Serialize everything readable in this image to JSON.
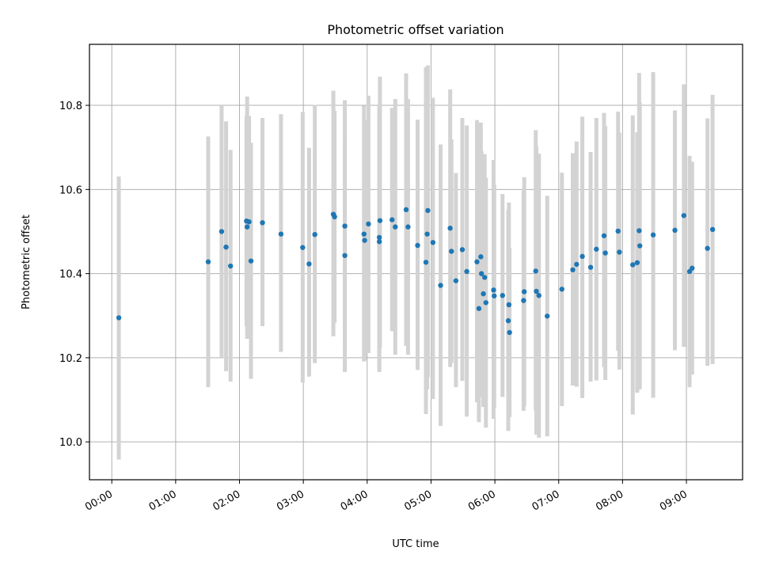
{
  "chart_data": {
    "type": "scatter",
    "title": "Photometric offset variation",
    "xlabel": "UTC time",
    "ylabel": "Photometric offset",
    "x_unit": "hours UTC",
    "xlim": [
      -0.35,
      9.88
    ],
    "ylim": [
      9.91,
      10.945
    ],
    "x_ticks": [
      0,
      1,
      2,
      3,
      4,
      5,
      6,
      7,
      8,
      9
    ],
    "x_tick_labels": [
      "00:00",
      "01:00",
      "02:00",
      "03:00",
      "04:00",
      "05:00",
      "06:00",
      "07:00",
      "08:00",
      "09:00"
    ],
    "y_ticks": [
      10.0,
      10.2,
      10.4,
      10.6,
      10.8
    ],
    "y_tick_labels": [
      "10.0",
      "10.2",
      "10.4",
      "10.6",
      "10.8"
    ],
    "grid": true,
    "errorbar_color": "#d3d3d3",
    "point_color": "#1f77b4",
    "series": [
      {
        "x": [
          0.11,
          1.51,
          1.72,
          1.79,
          1.86,
          2.11,
          2.12,
          2.15,
          2.18,
          2.36,
          2.65,
          2.99,
          3.09,
          3.18,
          3.47,
          3.49,
          3.65,
          3.65,
          3.95,
          3.96,
          4.02,
          4.19,
          4.19,
          4.2,
          4.39,
          4.44,
          4.61,
          4.64,
          4.79,
          4.92,
          4.94,
          4.95,
          5.03,
          5.15,
          5.3,
          5.32,
          5.39,
          5.49,
          5.56,
          5.72,
          5.75,
          5.78,
          5.79,
          5.82,
          5.84,
          5.86,
          5.98,
          5.99,
          6.12,
          6.21,
          6.22,
          6.23,
          6.45,
          6.46,
          6.64,
          6.65,
          6.69,
          6.82,
          7.05,
          7.22,
          7.28,
          7.37,
          7.5,
          7.59,
          7.71,
          7.73,
          7.93,
          7.95,
          8.16,
          8.23,
          8.26,
          8.27,
          8.48,
          8.82,
          8.96,
          9.05,
          9.09,
          9.33,
          9.41
        ],
        "y": [
          10.295,
          10.428,
          10.5,
          10.463,
          10.418,
          10.525,
          10.511,
          10.523,
          10.43,
          10.521,
          10.494,
          10.462,
          10.423,
          10.493,
          10.541,
          10.535,
          10.443,
          10.513,
          10.494,
          10.479,
          10.518,
          10.476,
          10.486,
          10.526,
          10.528,
          10.511,
          10.552,
          10.511,
          10.467,
          10.427,
          10.494,
          10.55,
          10.474,
          10.372,
          10.508,
          10.453,
          10.383,
          10.457,
          10.405,
          10.428,
          10.317,
          10.44,
          10.4,
          10.352,
          10.391,
          10.331,
          10.361,
          10.347,
          10.348,
          10.288,
          10.326,
          10.26,
          10.336,
          10.357,
          10.406,
          10.358,
          10.348,
          10.299,
          10.363,
          10.409,
          10.422,
          10.441,
          10.415,
          10.458,
          10.49,
          10.449,
          10.501,
          10.451,
          10.421,
          10.426,
          10.502,
          10.466,
          10.492,
          10.503,
          10.538,
          10.405,
          10.413,
          10.46,
          10.505
        ],
        "err_low": [
          9.958,
          10.13,
          10.202,
          10.168,
          10.143,
          10.275,
          10.245,
          10.28,
          10.15,
          10.275,
          10.214,
          10.141,
          10.155,
          10.187,
          10.251,
          10.283,
          10.166,
          10.222,
          10.191,
          10.194,
          10.211,
          10.166,
          10.176,
          10.224,
          10.263,
          10.207,
          10.228,
          10.207,
          10.171,
          10.066,
          10.125,
          10.154,
          10.102,
          10.038,
          10.178,
          10.188,
          10.13,
          10.145,
          10.06,
          10.094,
          10.047,
          10.12,
          10.107,
          10.083,
          10.097,
          10.034,
          10.055,
          10.082,
          10.107,
          10.026,
          10.085,
          10.059,
          10.074,
          10.085,
          10.074,
          10.017,
          10.01,
          10.013,
          10.085,
          10.134,
          10.131,
          10.104,
          10.143,
          10.146,
          10.178,
          10.147,
          10.217,
          10.172,
          10.065,
          10.117,
          10.126,
          10.125,
          10.105,
          10.218,
          10.226,
          10.13,
          10.16,
          10.181,
          10.185
        ],
        "err_high": [
          10.631,
          10.726,
          10.8,
          10.762,
          10.694,
          10.775,
          10.821,
          10.775,
          10.711,
          10.77,
          10.779,
          10.784,
          10.699,
          10.801,
          10.835,
          10.787,
          10.719,
          10.812,
          10.799,
          10.766,
          10.823,
          10.778,
          10.798,
          10.868,
          10.794,
          10.815,
          10.876,
          10.815,
          10.766,
          10.891,
          10.862,
          10.895,
          10.818,
          10.707,
          10.838,
          10.719,
          10.639,
          10.77,
          10.752,
          10.765,
          10.593,
          10.759,
          10.692,
          10.622,
          10.684,
          10.628,
          10.67,
          10.612,
          10.589,
          10.551,
          10.569,
          10.461,
          10.598,
          10.629,
          10.741,
          10.702,
          10.685,
          10.585,
          10.64,
          10.686,
          10.714,
          10.773,
          10.689,
          10.77,
          10.782,
          10.751,
          10.785,
          10.735,
          10.776,
          10.736,
          10.877,
          10.807,
          10.879,
          10.788,
          10.85,
          10.68,
          10.666,
          10.769,
          10.825
        ]
      }
    ]
  }
}
